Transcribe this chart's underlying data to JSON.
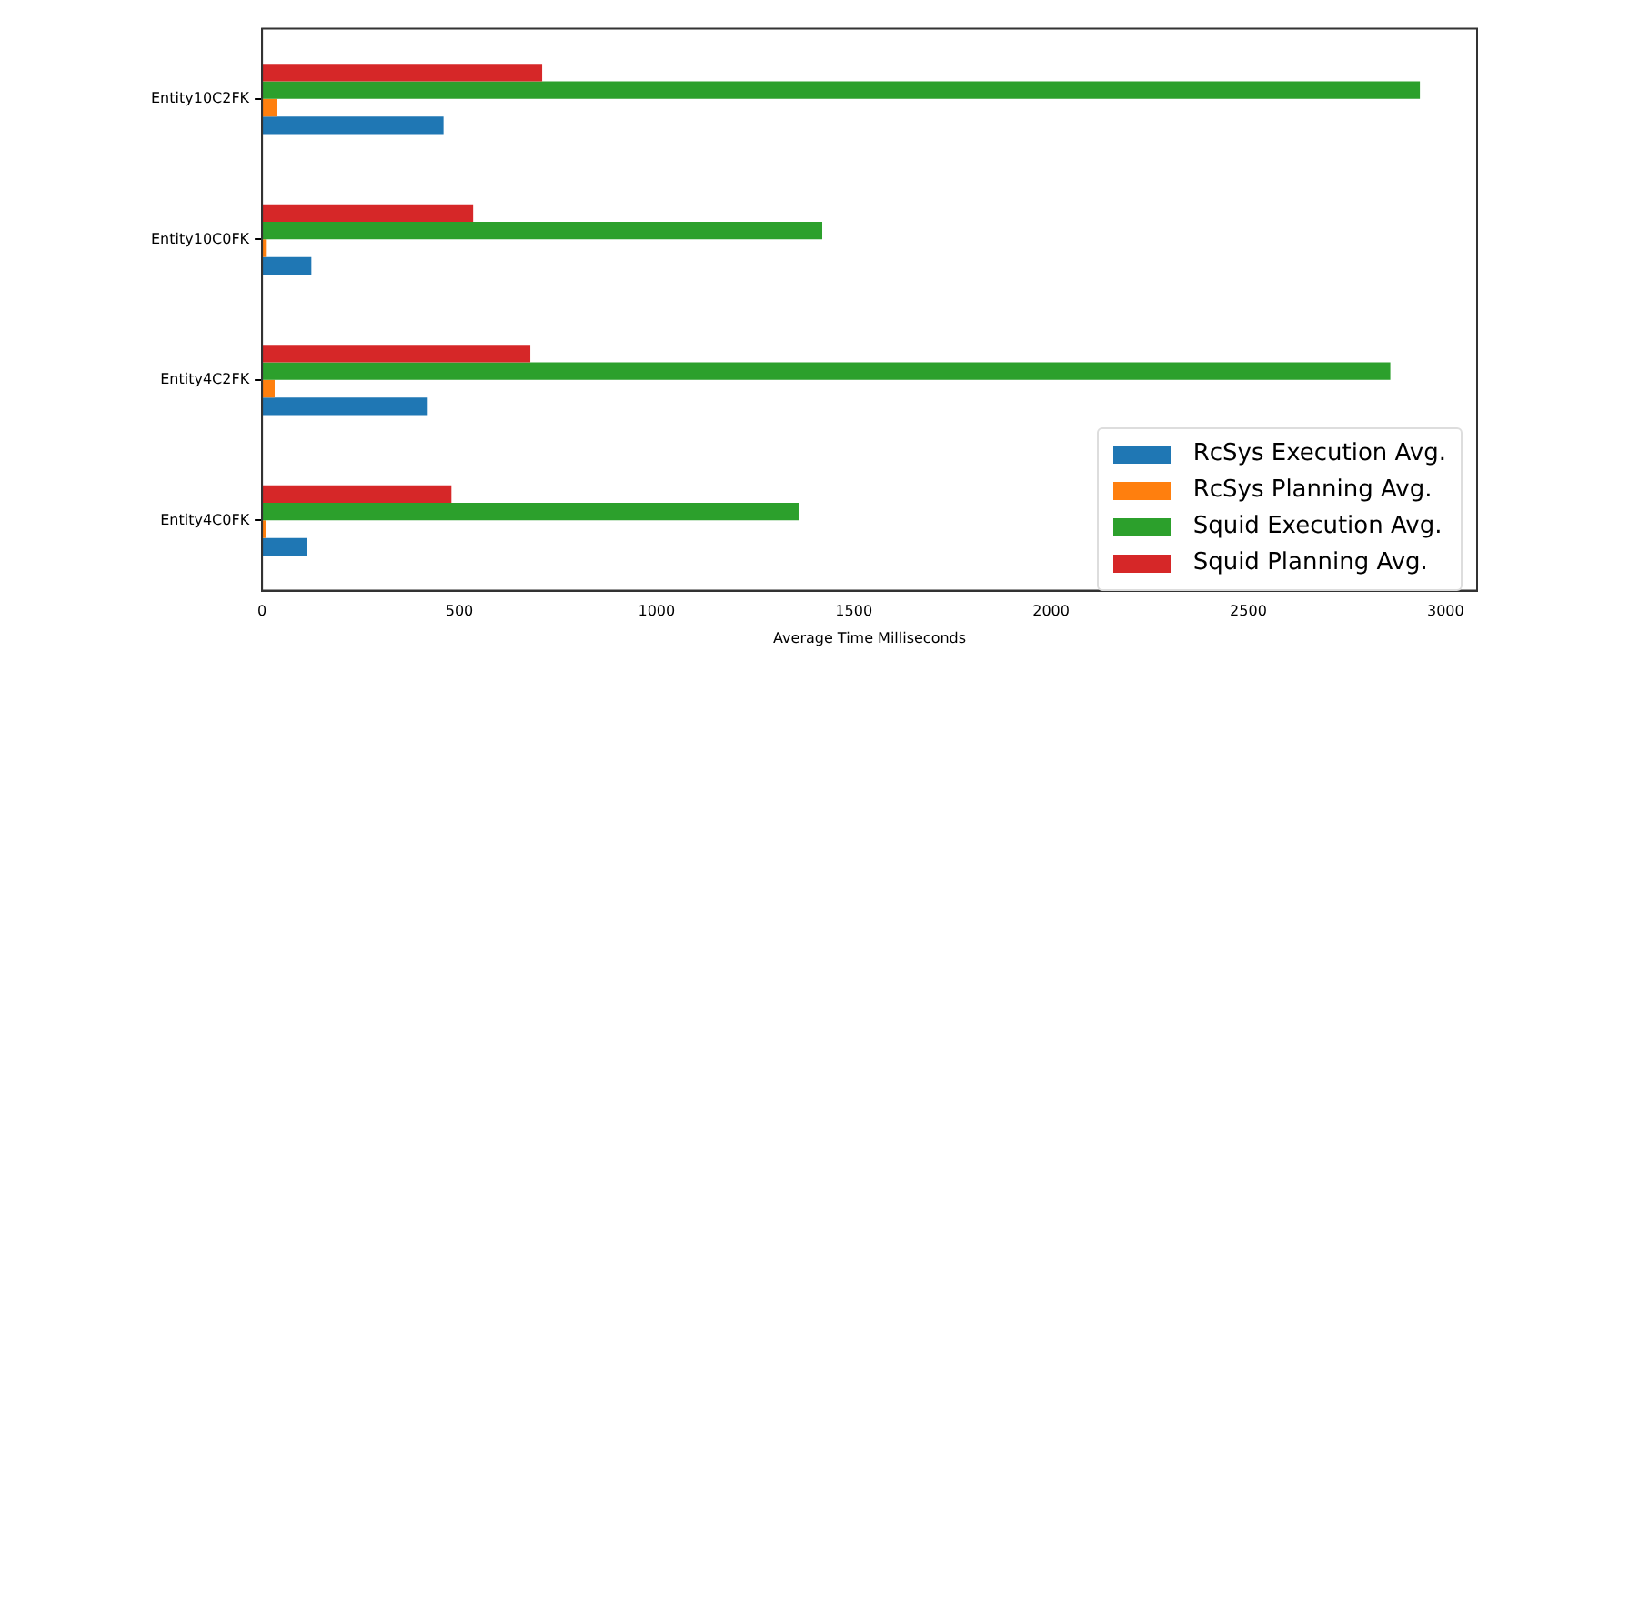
{
  "chart_data": {
    "type": "bar",
    "orientation": "horizontal",
    "xlabel": "Average Time Milliseconds",
    "categories": [
      "Entity10C2FK",
      "Entity10C0FK",
      "Entity4C2FK",
      "Entity4C0FK"
    ],
    "series": [
      {
        "name": "RcSys Execution Avg.",
        "color": "#1f77b4",
        "values": [
          460,
          125,
          420,
          115
        ]
      },
      {
        "name": "RcSys Planning Avg.",
        "color": "#ff7f0e",
        "values": [
          38,
          12,
          32,
          10
        ]
      },
      {
        "name": "Squid Execution Avg.",
        "color": "#2ca02c",
        "values": [
          2935,
          1420,
          2860,
          1360
        ]
      },
      {
        "name": "Squid Planning Avg.",
        "color": "#d62728",
        "values": [
          710,
          535,
          680,
          480
        ]
      }
    ],
    "xlim": [
      0,
      3080
    ],
    "xticks": [
      0,
      500,
      1000,
      1500,
      2000,
      2500,
      3000
    ],
    "grid": false,
    "legend": "bottom right"
  }
}
